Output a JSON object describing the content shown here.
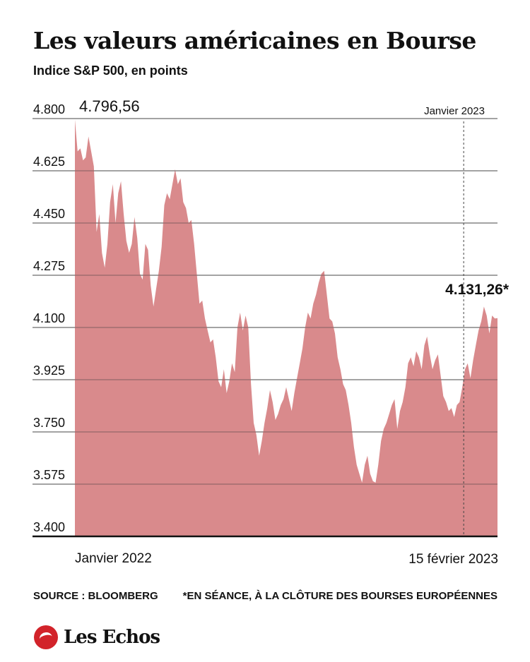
{
  "header": {
    "title": "Les valeurs américaines en Bourse",
    "subtitle": "Indice S&P 500, en points"
  },
  "footer": {
    "source": "SOURCE : BLOOMBERG",
    "note": "*EN SÉANCE, À LA CLÔTURE DES BOURSES EUROPÉENNES"
  },
  "brand": {
    "name": "Les Echos",
    "color": "#d2232a"
  },
  "chart_data": {
    "type": "area",
    "title": "Les valeurs américaines en Bourse",
    "subtitle": "Indice S&P 500, en points",
    "y_ticks": [
      "4.800",
      "4.625",
      "4.450",
      "4.275",
      "4.100",
      "3.925",
      "3.750",
      "3.575",
      "3.400"
    ],
    "ylim": [
      3400,
      4800
    ],
    "x_labels": [
      "Janvier 2022",
      "15 février 2023"
    ],
    "grid": true,
    "fill_color": "#d98a8c",
    "annotations": {
      "start_value_label": "4.796,56",
      "end_value_label": "4.131,26*",
      "marker_label": "Janvier 2023",
      "marker_fraction_of_period": 0.92
    },
    "series": [
      {
        "values": [
          4796.56,
          4690,
          4700,
          4660,
          4670,
          4740,
          4690,
          4640,
          4420,
          4480,
          4350,
          4300,
          4380,
          4520,
          4580,
          4450,
          4550,
          4590,
          4480,
          4390,
          4350,
          4380,
          4470,
          4400,
          4280,
          4260,
          4380,
          4360,
          4240,
          4170,
          4230,
          4290,
          4370,
          4510,
          4550,
          4530,
          4580,
          4630,
          4580,
          4600,
          4520,
          4500,
          4450,
          4460,
          4380,
          4280,
          4180,
          4190,
          4130,
          4090,
          4050,
          4060,
          4000,
          3920,
          3900,
          3960,
          3880,
          3920,
          3980,
          3950,
          4100,
          4150,
          4090,
          4140,
          4100,
          3910,
          3780,
          3740,
          3670,
          3720,
          3780,
          3830,
          3890,
          3850,
          3790,
          3810,
          3840,
          3860,
          3900,
          3860,
          3820,
          3880,
          3930,
          3980,
          4030,
          4100,
          4150,
          4130,
          4180,
          4210,
          4250,
          4280,
          4290,
          4210,
          4130,
          4120,
          4080,
          4000,
          3960,
          3910,
          3890,
          3840,
          3780,
          3700,
          3640,
          3610,
          3580,
          3640,
          3670,
          3610,
          3585,
          3580,
          3640,
          3720,
          3760,
          3780,
          3810,
          3840,
          3860,
          3760,
          3820,
          3850,
          3900,
          3980,
          4000,
          3970,
          4020,
          4000,
          3960,
          4040,
          4070,
          4010,
          3960,
          3990,
          4010,
          3940,
          3870,
          3850,
          3820,
          3830,
          3800,
          3840,
          3850,
          3900,
          3960,
          3980,
          3930,
          3990,
          4040,
          4090,
          4120,
          4170,
          4140,
          4080,
          4140,
          4130,
          4131.26
        ]
      }
    ]
  }
}
